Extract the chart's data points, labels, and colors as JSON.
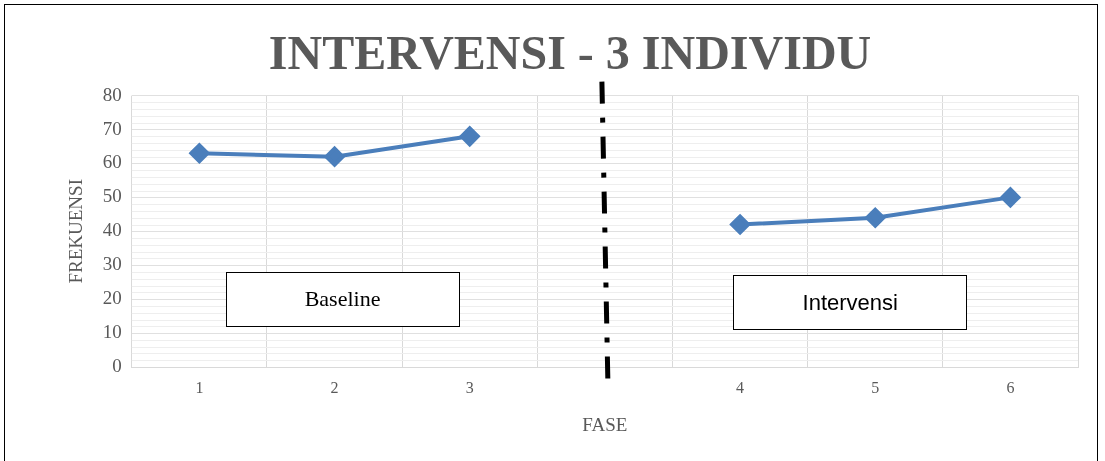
{
  "chart_data": {
    "type": "line",
    "title": "INTERVENSI - 3 INDIVIDU",
    "xlabel": "FASE",
    "ylabel": "FREKUENSI",
    "categories": [
      "1",
      "2",
      "3",
      null,
      "4",
      "5",
      "6"
    ],
    "series": [
      {
        "color": "#4a7ebb",
        "values": [
          63,
          62,
          68,
          null,
          42,
          44,
          50
        ]
      }
    ],
    "marker": "diamond",
    "line_style": "solid",
    "ylim": [
      0,
      80
    ],
    "yticks": [
      0,
      10,
      20,
      30,
      40,
      50,
      60,
      70,
      80
    ],
    "grid": true,
    "legend": false,
    "annotations": [
      "Baseline",
      "Intervensi"
    ]
  }
}
